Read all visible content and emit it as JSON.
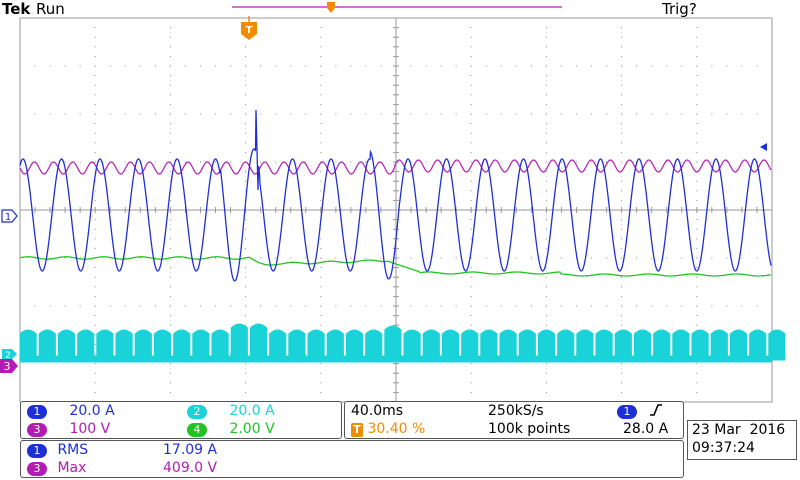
{
  "header": {
    "brand": "Tek",
    "run_state": "Run",
    "trigger_state": "Trig?"
  },
  "markers": {
    "trigger_marker": "T",
    "ch1_marker": "1",
    "ch2_marker": "2",
    "ch3_marker": "3"
  },
  "colors": {
    "ch1": "#1f2fd6",
    "ch2": "#19d3d8",
    "ch3": "#b31bb3",
    "ch4": "#22c322",
    "trigger": "#f08c00",
    "grid": "#9a9a9a"
  },
  "channels": [
    {
      "number": "1",
      "scale": "20.0 A",
      "color": "#1f2fd6"
    },
    {
      "number": "2",
      "scale": "20.0 A",
      "color": "#19d3d8"
    },
    {
      "number": "3",
      "scale": "100 V",
      "color": "#b31bb3"
    },
    {
      "number": "4",
      "scale": "2.00 V",
      "color": "#22c322"
    }
  ],
  "timebase": {
    "time_per_div": "40.0ms",
    "sample_rate": "250kS/s",
    "trigger_position": "30.40 %",
    "record_length": "100k points",
    "trigger_source": "1",
    "trigger_slope_icon": "rising-edge-icon",
    "trigger_level": "28.0 A"
  },
  "measurements": [
    {
      "channel": "1",
      "type": "RMS",
      "value": "17.09 A",
      "color": "#1f2fd6"
    },
    {
      "channel": "3",
      "type": "Max",
      "value": "409.0 V",
      "color": "#b31bb3"
    }
  ],
  "datetime": {
    "date": "23 Mar  2016",
    "time": "09:37:24"
  }
}
